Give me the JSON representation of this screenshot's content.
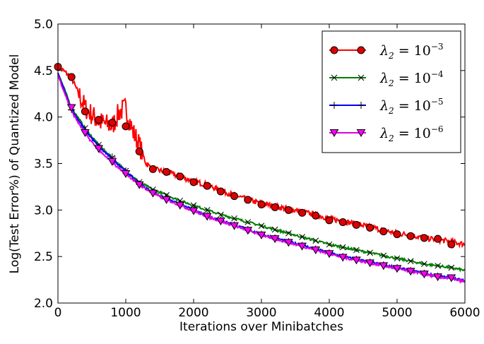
{
  "chart_data": {
    "type": "line",
    "title": "",
    "xlabel": "Iterations over Minibatches",
    "ylabel": "Log(Test Error%) of Quantized Model",
    "xlim": [
      0,
      6000
    ],
    "ylim": [
      2.0,
      5.0
    ],
    "xticks": [
      "0",
      "1000",
      "2000",
      "3000",
      "4000",
      "5000",
      "6000"
    ],
    "xtick_values": [
      0,
      1000,
      2000,
      3000,
      4000,
      5000,
      6000
    ],
    "yticks": [
      "2.0",
      "2.5",
      "3.0",
      "3.5",
      "4.0",
      "4.5",
      "5.0"
    ],
    "ytick_values": [
      2.0,
      2.5,
      3.0,
      3.5,
      4.0,
      4.5,
      5.0
    ],
    "legend_position": "top-right",
    "series": [
      {
        "name": "λ2 = 10^-3",
        "label_base": "λ",
        "label_sub": "2",
        "label_eq": " = 10",
        "label_sup": "−3",
        "color": "#ff0000",
        "marker": "circle",
        "marker_fill": "#dd0000",
        "noise": 0.03,
        "x": [
          0,
          200,
          400,
          600,
          800,
          900,
          1000,
          1100,
          1200,
          1300,
          1400,
          1600,
          1800,
          2000,
          2200,
          2400,
          2600,
          2800,
          3000,
          3200,
          3400,
          3600,
          3800,
          4000,
          4200,
          4400,
          4600,
          4800,
          5000,
          5200,
          5400,
          5600,
          5800,
          6000
        ],
        "y": [
          4.55,
          4.42,
          4.1,
          3.95,
          3.9,
          4.05,
          4.1,
          3.85,
          3.7,
          3.5,
          3.44,
          3.41,
          3.36,
          3.31,
          3.27,
          3.21,
          3.16,
          3.11,
          3.07,
          3.04,
          3.01,
          2.98,
          2.95,
          2.91,
          2.88,
          2.85,
          2.82,
          2.78,
          2.75,
          2.73,
          2.7,
          2.68,
          2.66,
          2.63
        ],
        "marker_x": [
          0,
          200,
          400,
          600,
          800,
          1000,
          1200,
          1400,
          1600,
          1800,
          2000,
          2200,
          2400,
          2600,
          2800,
          3000,
          3200,
          3400,
          3600,
          3800,
          4000,
          4200,
          4400,
          4600,
          4800,
          5000,
          5200,
          5400,
          5600,
          5800
        ],
        "marker_y": [
          4.54,
          4.43,
          4.06,
          3.97,
          3.94,
          3.9,
          3.63,
          3.44,
          3.41,
          3.36,
          3.3,
          3.26,
          3.2,
          3.15,
          3.11,
          3.06,
          3.03,
          3.0,
          2.97,
          2.94,
          2.89,
          2.87,
          2.84,
          2.81,
          2.77,
          2.74,
          2.72,
          2.7,
          2.69,
          2.63
        ]
      },
      {
        "name": "λ2 = 10^-4",
        "label_base": "λ",
        "label_sub": "2",
        "label_eq": " = 10",
        "label_sup": "−4",
        "color": "#007f00",
        "marker": "x",
        "marker_fill": "#000000",
        "noise": 0.012,
        "x": [
          0,
          200,
          400,
          600,
          800,
          1000,
          1200,
          1400,
          1600,
          1800,
          2000,
          2200,
          2400,
          2600,
          2800,
          3000,
          3200,
          3400,
          3600,
          3800,
          4000,
          4200,
          4400,
          4600,
          4800,
          5000,
          5200,
          5400,
          5600,
          5800,
          6000
        ],
        "y": [
          4.48,
          4.1,
          3.88,
          3.7,
          3.56,
          3.42,
          3.3,
          3.22,
          3.16,
          3.1,
          3.05,
          3.0,
          2.95,
          2.91,
          2.87,
          2.83,
          2.79,
          2.75,
          2.71,
          2.67,
          2.63,
          2.6,
          2.57,
          2.54,
          2.51,
          2.48,
          2.45,
          2.42,
          2.4,
          2.38,
          2.35
        ],
        "marker_x": [
          200,
          400,
          600,
          800,
          1000,
          1200,
          1400,
          1600,
          1800,
          2000,
          2200,
          2400,
          2600,
          2800,
          3000,
          3200,
          3400,
          3600,
          3800,
          4000,
          4200,
          4400,
          4600,
          4800,
          5000,
          5200,
          5400,
          5600,
          5800
        ],
        "marker_y": [
          4.1,
          3.88,
          3.7,
          3.56,
          3.42,
          3.3,
          3.22,
          3.16,
          3.1,
          3.05,
          3.0,
          2.95,
          2.91,
          2.87,
          2.83,
          2.79,
          2.75,
          2.71,
          2.67,
          2.63,
          2.6,
          2.57,
          2.54,
          2.51,
          2.48,
          2.45,
          2.42,
          2.4,
          2.38
        ]
      },
      {
        "name": "λ2 = 10^-5",
        "label_base": "λ",
        "label_sub": "2",
        "label_eq": " = 10",
        "label_sup": "−5",
        "color": "#0000ff",
        "marker": "plus",
        "marker_fill": "#000000",
        "noise": 0.012,
        "x": [
          0,
          200,
          400,
          600,
          800,
          1000,
          1200,
          1400,
          1600,
          1800,
          2000,
          2200,
          2400,
          2600,
          2800,
          3000,
          3200,
          3400,
          3600,
          3800,
          4000,
          4200,
          4400,
          4600,
          4800,
          5000,
          5200,
          5400,
          5600,
          5800,
          6000
        ],
        "y": [
          4.47,
          4.08,
          3.86,
          3.68,
          3.55,
          3.42,
          3.28,
          3.19,
          3.12,
          3.06,
          3.0,
          2.94,
          2.89,
          2.84,
          2.79,
          2.74,
          2.7,
          2.66,
          2.62,
          2.58,
          2.54,
          2.5,
          2.47,
          2.44,
          2.41,
          2.38,
          2.35,
          2.32,
          2.29,
          2.27,
          2.24
        ],
        "marker_x": [
          200,
          400,
          600,
          800,
          1000,
          1200,
          1400,
          1600,
          1800,
          2000,
          2200,
          2400,
          2600,
          2800,
          3000,
          3200,
          3400,
          3600,
          3800,
          4000,
          4200,
          4400,
          4600,
          4800,
          5000,
          5200,
          5400,
          5600,
          5800
        ],
        "marker_y": [
          4.08,
          3.86,
          3.68,
          3.57,
          3.42,
          3.28,
          3.19,
          3.12,
          3.06,
          3.0,
          2.94,
          2.89,
          2.84,
          2.79,
          2.74,
          2.7,
          2.66,
          2.62,
          2.58,
          2.54,
          2.5,
          2.47,
          2.44,
          2.41,
          2.38,
          2.35,
          2.32,
          2.29,
          2.27
        ]
      },
      {
        "name": "λ2 = 10^-6",
        "label_base": "λ",
        "label_sub": "2",
        "label_eq": " = 10",
        "label_sup": "−6",
        "color": "#dd00dd",
        "marker": "triangle-down",
        "marker_fill": "#ff00ff",
        "noise": 0.012,
        "x": [
          0,
          200,
          400,
          600,
          800,
          1000,
          1200,
          1400,
          1600,
          1800,
          2000,
          2200,
          2400,
          2600,
          2800,
          3000,
          3200,
          3400,
          3600,
          3800,
          4000,
          4200,
          4400,
          4600,
          4800,
          5000,
          5200,
          5400,
          5600,
          5800,
          6000
        ],
        "y": [
          4.45,
          4.06,
          3.82,
          3.64,
          3.51,
          3.39,
          3.27,
          3.18,
          3.11,
          3.05,
          2.99,
          2.93,
          2.88,
          2.83,
          2.78,
          2.73,
          2.69,
          2.65,
          2.61,
          2.57,
          2.53,
          2.49,
          2.46,
          2.43,
          2.4,
          2.37,
          2.34,
          2.31,
          2.28,
          2.26,
          2.23
        ],
        "marker_x": [
          200,
          400,
          600,
          800,
          1000,
          1200,
          1400,
          1600,
          1800,
          2000,
          2200,
          2400,
          2600,
          2800,
          3000,
          3200,
          3400,
          3600,
          3800,
          4000,
          4200,
          4400,
          4600,
          4800,
          5000,
          5200,
          5400,
          5600,
          5800
        ],
        "marker_y": [
          4.1,
          3.83,
          3.66,
          3.52,
          3.39,
          3.27,
          3.18,
          3.11,
          3.05,
          2.99,
          2.93,
          2.88,
          2.83,
          2.78,
          2.73,
          2.69,
          2.65,
          2.61,
          2.57,
          2.53,
          2.49,
          2.46,
          2.43,
          2.4,
          2.37,
          2.34,
          2.31,
          2.28,
          2.27
        ]
      }
    ]
  }
}
